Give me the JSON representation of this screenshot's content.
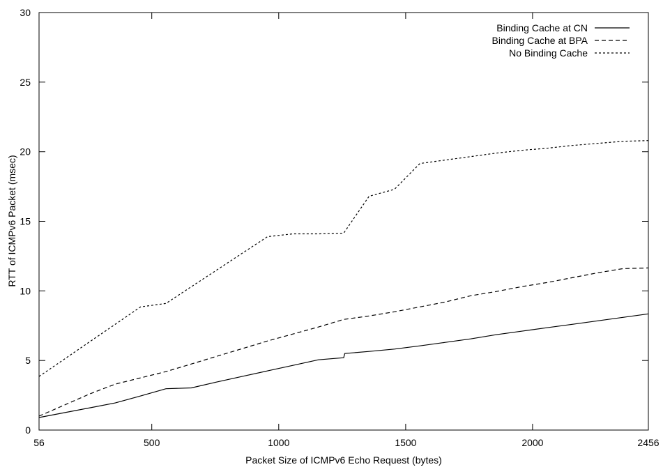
{
  "chart_data": {
    "type": "line",
    "title": "",
    "xlabel": "Packet Size of ICMPv6 Echo Request (bytes)",
    "ylabel": "RTT of ICMPv6 Packet (msec)",
    "xlim": [
      56,
      2456
    ],
    "ylim": [
      0,
      30
    ],
    "xticks": [
      56,
      500,
      1000,
      1500,
      2000,
      2456
    ],
    "yticks": [
      0,
      5,
      10,
      15,
      20,
      25,
      30
    ],
    "grid": false,
    "legend_position": "top-right",
    "series": [
      {
        "name": "Binding Cache at CN",
        "dash": "",
        "x": [
          56,
          256,
          356,
          456,
          556,
          656,
          756,
          856,
          956,
          1056,
          1156,
          1256,
          1260,
          1356,
          1456,
          1556,
          1656,
          1756,
          1856,
          1956,
          2056,
          2156,
          2256,
          2356,
          2456
        ],
        "y": [
          0.9,
          1.6,
          1.95,
          2.45,
          2.97,
          3.03,
          3.45,
          3.85,
          4.25,
          4.65,
          5.05,
          5.2,
          5.5,
          5.65,
          5.82,
          6.05,
          6.3,
          6.55,
          6.85,
          7.1,
          7.35,
          7.6,
          7.85,
          8.1,
          8.35
        ]
      },
      {
        "name": "Binding Cache at BPA",
        "dash": "6,4",
        "x": [
          56,
          156,
          256,
          356,
          456,
          556,
          656,
          756,
          856,
          956,
          1056,
          1156,
          1256,
          1356,
          1456,
          1556,
          1656,
          1756,
          1856,
          1956,
          2056,
          2156,
          2256,
          2356,
          2456
        ],
        "y": [
          1.0,
          1.8,
          2.6,
          3.3,
          3.75,
          4.2,
          4.75,
          5.3,
          5.85,
          6.4,
          6.9,
          7.4,
          7.95,
          8.2,
          8.5,
          8.85,
          9.2,
          9.65,
          9.95,
          10.3,
          10.6,
          10.95,
          11.3,
          11.6,
          11.65
        ]
      },
      {
        "name": "No Binding Cache",
        "dash": "3,3",
        "x": [
          56,
          156,
          256,
          356,
          456,
          556,
          656,
          756,
          856,
          956,
          1056,
          1156,
          1256,
          1356,
          1456,
          1556,
          1656,
          1756,
          1856,
          1956,
          2056,
          2156,
          2256,
          2356,
          2456
        ],
        "y": [
          3.85,
          5.1,
          6.35,
          7.6,
          8.85,
          9.1,
          10.3,
          11.5,
          12.7,
          13.9,
          14.1,
          14.1,
          14.15,
          16.8,
          17.3,
          19.15,
          19.4,
          19.65,
          19.9,
          20.1,
          20.25,
          20.45,
          20.6,
          20.75,
          20.8
        ]
      }
    ]
  }
}
